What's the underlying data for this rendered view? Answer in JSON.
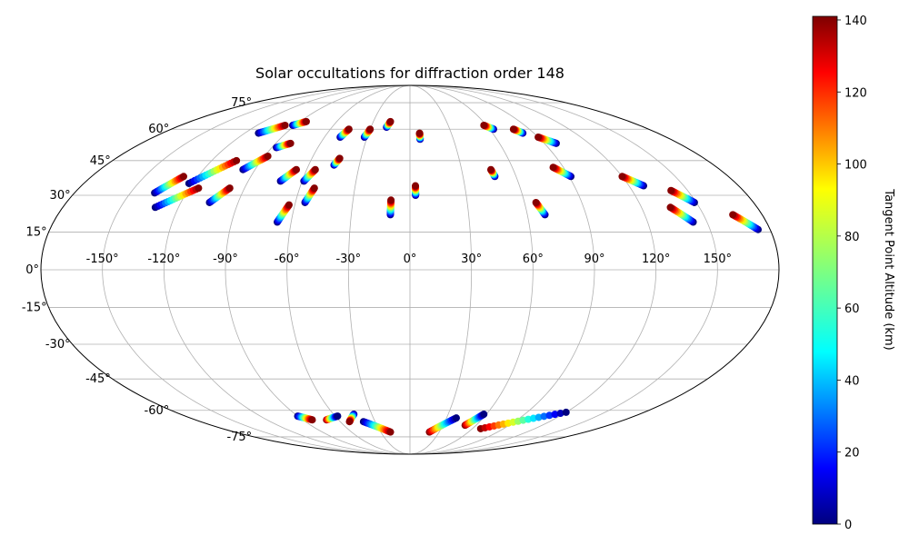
{
  "chart_data": {
    "type": "scatter",
    "projection": "mollweide",
    "title": "Solar occultations for diffraction order 148",
    "x_tick_labels": [
      "-150°",
      "-120°",
      "-90°",
      "-60°",
      "-30°",
      "0°",
      "30°",
      "60°",
      "90°",
      "120°",
      "150°"
    ],
    "x_tick_values": [
      -150,
      -120,
      -90,
      -60,
      -30,
      0,
      30,
      60,
      90,
      120,
      150
    ],
    "y_tick_labels": [
      "-75°",
      "-60°",
      "-45°",
      "-30°",
      "-15°",
      "0°",
      "15°",
      "30°",
      "45°",
      "60°",
      "75°"
    ],
    "y_tick_values": [
      -75,
      -60,
      -45,
      -30,
      -15,
      0,
      15,
      30,
      45,
      60,
      75
    ],
    "grid": true,
    "colormap": "jet",
    "colorbar": {
      "label": "Tangent Point Altitude (km)",
      "range": [
        0,
        141
      ],
      "tick_values": [
        0,
        20,
        40,
        60,
        80,
        100,
        120,
        140
      ],
      "tick_labels": [
        "0",
        "20",
        "40",
        "60",
        "80",
        "100",
        "120",
        "140"
      ],
      "position": "right"
    },
    "tracks": [
      {
        "lon": [
          -137,
          -128
        ],
        "lat": [
          31,
          38
        ],
        "alt": [
          0,
          140
        ]
      },
      {
        "lon": [
          -132,
          -115
        ],
        "lat": [
          25,
          33
        ],
        "alt": [
          0,
          140
        ]
      },
      {
        "lon": [
          -122,
          -105
        ],
        "lat": [
          35,
          45
        ],
        "alt": [
          0,
          140
        ]
      },
      {
        "lon": [
          -110,
          -98
        ],
        "lat": [
          58,
          62
        ],
        "alt": [
          0,
          140
        ]
      },
      {
        "lon": [
          -105,
          -98
        ],
        "lat": [
          27,
          33
        ],
        "alt": [
          0,
          140
        ]
      },
      {
        "lon": [
          -97,
          -88
        ],
        "lat": [
          41,
          47
        ],
        "alt": [
          0,
          140
        ]
      },
      {
        "lon": [
          -92,
          -85
        ],
        "lat": [
          62,
          64
        ],
        "alt": [
          0,
          140
        ]
      },
      {
        "lon": [
          -87,
          -80
        ],
        "lat": [
          51,
          53
        ],
        "alt": [
          0,
          140
        ]
      },
      {
        "lon": [
          -72,
          -66
        ],
        "lat": [
          36,
          41
        ],
        "alt": [
          0,
          140
        ]
      },
      {
        "lon": [
          -67,
          -63
        ],
        "lat": [
          19,
          26
        ],
        "alt": [
          0,
          140
        ]
      },
      {
        "lon": [
          -59,
          -55
        ],
        "lat": [
          36,
          41
        ],
        "alt": [
          0,
          140
        ]
      },
      {
        "lon": [
          -55,
          -52
        ],
        "lat": [
          27,
          33
        ],
        "alt": [
          0,
          140
        ]
      },
      {
        "lon": [
          -49,
          -46
        ],
        "lat": [
          56,
          60
        ],
        "alt": [
          0,
          140
        ]
      },
      {
        "lon": [
          -45,
          -43
        ],
        "lat": [
          43,
          46
        ],
        "alt": [
          0,
          140
        ]
      },
      {
        "lon": [
          -32,
          -30
        ],
        "lat": [
          56,
          60
        ],
        "alt": [
          0,
          140
        ]
      },
      {
        "lon": [
          -18,
          -16
        ],
        "lat": [
          61,
          64
        ],
        "alt": [
          0,
          140
        ]
      },
      {
        "lon": [
          -10,
          -10
        ],
        "lat": [
          22,
          28
        ],
        "alt": [
          0,
          140
        ]
      },
      {
        "lon": [
          3,
          3
        ],
        "lat": [
          30,
          34
        ],
        "alt": [
          0,
          140
        ]
      },
      {
        "lon": [
          7,
          7
        ],
        "lat": [
          55,
          58
        ],
        "alt": [
          0,
          140
        ]
      },
      {
        "lon": [
          48,
          47
        ],
        "lat": [
          38,
          41
        ],
        "alt": [
          0,
          140
        ]
      },
      {
        "lon": [
          69,
          66
        ],
        "lat": [
          22,
          27
        ],
        "alt": [
          0,
          140
        ]
      },
      {
        "lon": [
          63,
          58
        ],
        "lat": [
          60,
          62
        ],
        "alt": [
          0,
          140
        ]
      },
      {
        "lon": [
          82,
          78
        ],
        "lat": [
          58,
          60
        ],
        "alt": [
          0,
          140
        ]
      },
      {
        "lon": [
          91,
          84
        ],
        "lat": [
          38,
          42
        ],
        "alt": [
          0,
          140
        ]
      },
      {
        "lon": [
          98,
          90
        ],
        "lat": [
          53,
          56
        ],
        "alt": [
          0,
          140
        ]
      },
      {
        "lon": [
          128,
          120
        ],
        "lat": [
          34,
          38
        ],
        "alt": [
          0,
          140
        ]
      },
      {
        "lon": [
          143,
          135
        ],
        "lat": [
          19,
          25
        ],
        "alt": [
          0,
          140
        ]
      },
      {
        "lon": [
          149,
          141
        ],
        "lat": [
          27,
          32
        ],
        "alt": [
          0,
          140
        ]
      },
      {
        "lon": [
          174,
          165
        ],
        "lat": [
          16,
          22
        ],
        "alt": [
          0,
          140
        ]
      },
      {
        "lon": [
          -44,
          -52
        ],
        "lat": [
          -62,
          -66
        ],
        "alt": [
          0,
          140
        ]
      },
      {
        "lon": [
          -90,
          -82
        ],
        "lat": [
          -63,
          -65
        ],
        "alt": [
          0,
          140
        ]
      },
      {
        "lon": [
          -70,
          -58
        ],
        "lat": [
          -65,
          -63
        ],
        "alt": [
          140,
          0
        ]
      },
      {
        "lon": [
          -40,
          -20
        ],
        "lat": [
          -66,
          -72
        ],
        "alt": [
          0,
          140
        ]
      },
      {
        "lon": [
          50,
          58
        ],
        "lat": [
          -68,
          -62
        ],
        "alt": [
          140,
          0
        ]
      },
      {
        "lon": [
          68,
          120
        ],
        "lat": [
          -70,
          -61
        ],
        "alt": [
          140,
          0
        ]
      },
      {
        "lon": [
          20,
          38
        ],
        "lat": [
          -72,
          -64
        ],
        "alt": [
          140,
          0
        ]
      }
    ]
  }
}
